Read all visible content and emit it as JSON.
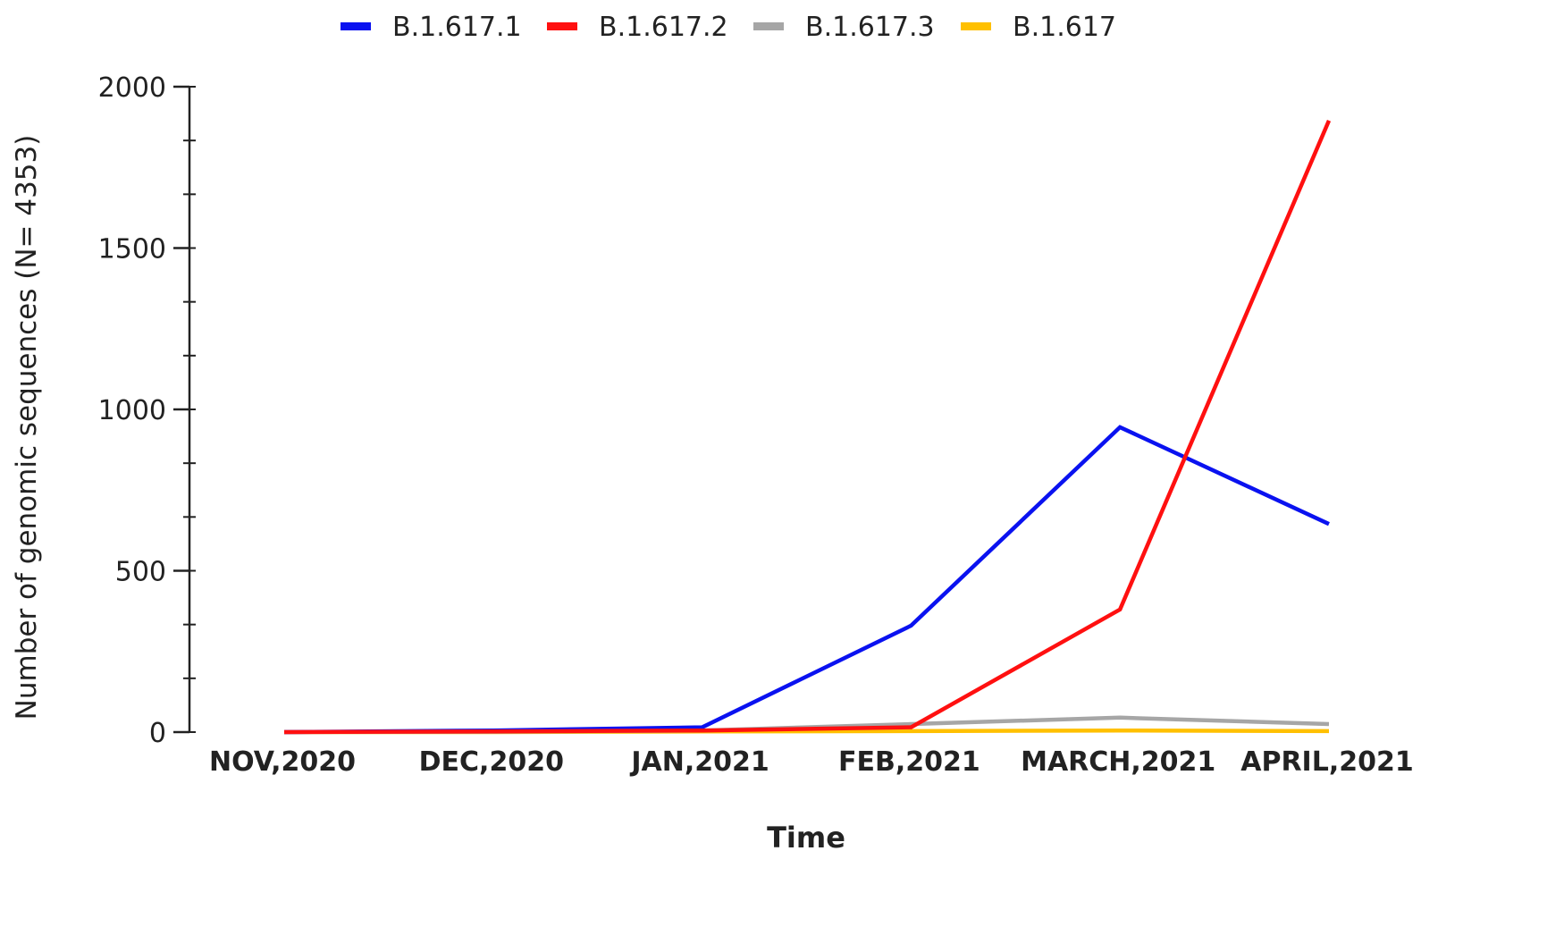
{
  "chart_data": {
    "type": "line",
    "title": "",
    "xlabel": "Time",
    "ylabel": "Number of genomic sequences (N= 4353)",
    "categories": [
      "NOV,2020",
      "DEC,2020",
      "JAN,2021",
      "FEB,2021",
      "MARCH,2021",
      "APRIL,2021"
    ],
    "ylim": [
      0,
      2000
    ],
    "yticks": [
      0,
      500,
      1000,
      1500,
      2000
    ],
    "ytick_labels": [
      "0",
      "500",
      "1000",
      "1500",
      "2000"
    ],
    "minor_tick_step": 166.67,
    "grid": false,
    "legend_position": "top-center",
    "series": [
      {
        "name": "B.1.617.1",
        "color": "#0a12f0",
        "values": [
          0,
          5,
          15,
          330,
          945,
          645
        ]
      },
      {
        "name": "B.1.617.2",
        "color": "#ff1010",
        "values": [
          0,
          2,
          5,
          15,
          380,
          1895
        ]
      },
      {
        "name": "B.1.617.3",
        "color": "#a6a6a6",
        "values": [
          0,
          1,
          5,
          25,
          45,
          25
        ]
      },
      {
        "name": "B.1.617",
        "color": "#ffc000",
        "values": [
          0,
          0,
          2,
          3,
          5,
          3
        ]
      }
    ]
  }
}
